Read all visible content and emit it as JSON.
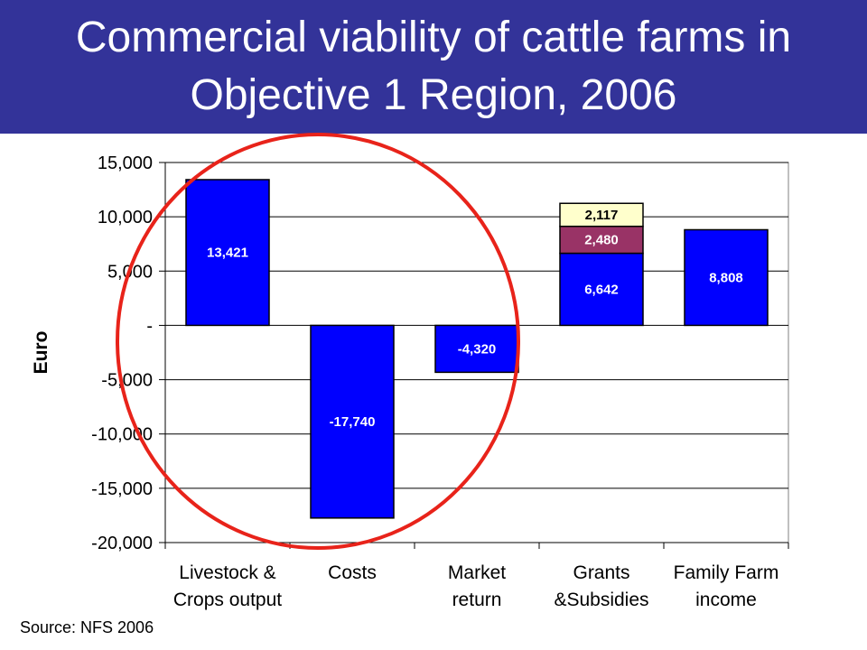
{
  "slide": {
    "title_lines": [
      "Commercial viability of cattle farms in",
      "Objective 1 Region, 2006"
    ],
    "source": "Source:  NFS 2006"
  },
  "colors": {
    "title_band": "#333399",
    "bar_primary": "#0000FF",
    "bar_secondary": "#993366",
    "bar_tertiary": "#FFFFCC",
    "circle": "#E8231A"
  },
  "chart_data": {
    "type": "bar",
    "stacked": true,
    "ylabel": "Euro",
    "ylim": [
      -20000,
      15000
    ],
    "yticks": [
      15000,
      10000,
      5000,
      0,
      -5000,
      -10000,
      -15000,
      -20000
    ],
    "ytick_labels": [
      "15,000",
      "10,000",
      "5,000",
      "-",
      "-5,000",
      "-10,000",
      "-15,000",
      "-20,000"
    ],
    "grid": "horizontal",
    "categories": [
      [
        "Livestock &",
        "Crops output"
      ],
      [
        "Costs"
      ],
      [
        "Market",
        "return"
      ],
      [
        "Grants",
        "&Subsidies"
      ],
      [
        "Family Farm",
        "income"
      ]
    ],
    "series": [
      {
        "values": [
          13421,
          -17740,
          -4320,
          6642,
          8808
        ],
        "labels": [
          "13,421",
          "-17,740",
          "-4,320",
          "6,642",
          "8,808"
        ],
        "color": "#0000FF",
        "label_color": "#ffffff"
      },
      {
        "values": [
          0,
          0,
          0,
          2480,
          0
        ],
        "labels": [
          "",
          "",
          "",
          "2,480",
          ""
        ],
        "color": "#993366",
        "label_color": "#ffffff"
      },
      {
        "values": [
          0,
          0,
          0,
          2117,
          0
        ],
        "labels": [
          "",
          "",
          "",
          "2,117",
          ""
        ],
        "color": "#FFFFCC",
        "label_color": "#000000"
      }
    ],
    "annotation": "red circle highlighting the first three bars"
  }
}
